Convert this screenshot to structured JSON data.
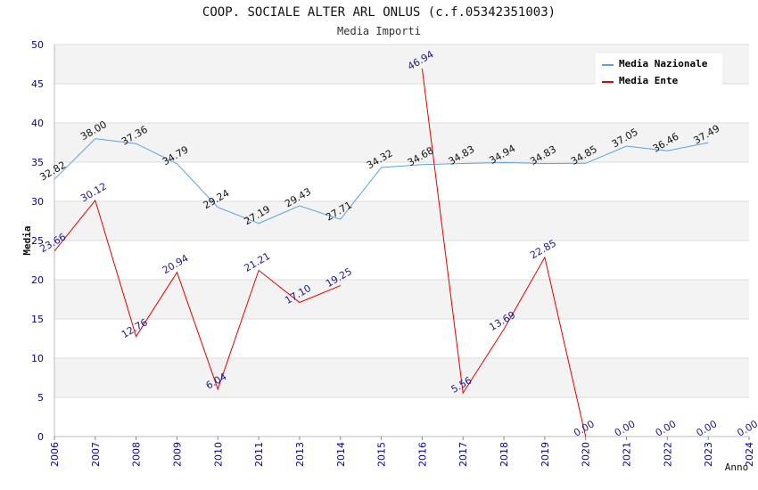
{
  "chart_data": {
    "type": "line",
    "title": "COOP. SOCIALE ALTER ARL ONLUS (c.f.05342351003)",
    "subtitle": "Media Importi",
    "xlabel": "Anno",
    "ylabel": "Media",
    "ylim": [
      0,
      50
    ],
    "yticks": [
      0,
      5,
      10,
      15,
      20,
      25,
      30,
      35,
      40,
      45,
      50
    ],
    "categories": [
      "2006",
      "2007",
      "2008",
      "2009",
      "2010",
      "2011",
      "2013",
      "2014",
      "2015",
      "2016",
      "2017",
      "2018",
      "2019",
      "2020",
      "2021",
      "2022",
      "2023",
      "2024"
    ],
    "legend_position": "top-right",
    "series": [
      {
        "name": "Media Nazionale",
        "color": "#5aa0e0",
        "values": [
          32.82,
          38.0,
          37.36,
          34.79,
          29.24,
          27.19,
          29.43,
          27.71,
          34.32,
          34.68,
          34.83,
          34.94,
          34.83,
          34.85,
          37.05,
          36.46,
          37.49,
          null
        ],
        "labels": [
          "32.82",
          "38.00",
          "37.36",
          "34.79",
          "29.24",
          "27.19",
          "29.43",
          "27.71",
          "34.32",
          "34.68",
          "34.83",
          "34.94",
          "34.83",
          "34.85",
          "37.05",
          "36.46",
          "37.49",
          null
        ]
      },
      {
        "name": "Media Ente",
        "color": "#e60000",
        "values": [
          23.66,
          30.12,
          12.76,
          20.94,
          6.04,
          21.21,
          17.1,
          19.25,
          null,
          46.94,
          5.56,
          13.69,
          22.85,
          0.0,
          0.0,
          0.0,
          0.0,
          0.0
        ],
        "labels": [
          "23.66",
          "30.12",
          "12.76",
          "20.94",
          "6.04",
          "21.21",
          "17.10",
          "19.25",
          null,
          "46.94",
          "5.56",
          "13.69",
          "22.85",
          "0.00",
          "0.00",
          "0.00",
          "0.00",
          "0.00"
        ],
        "line_until_index": 13
      }
    ]
  }
}
